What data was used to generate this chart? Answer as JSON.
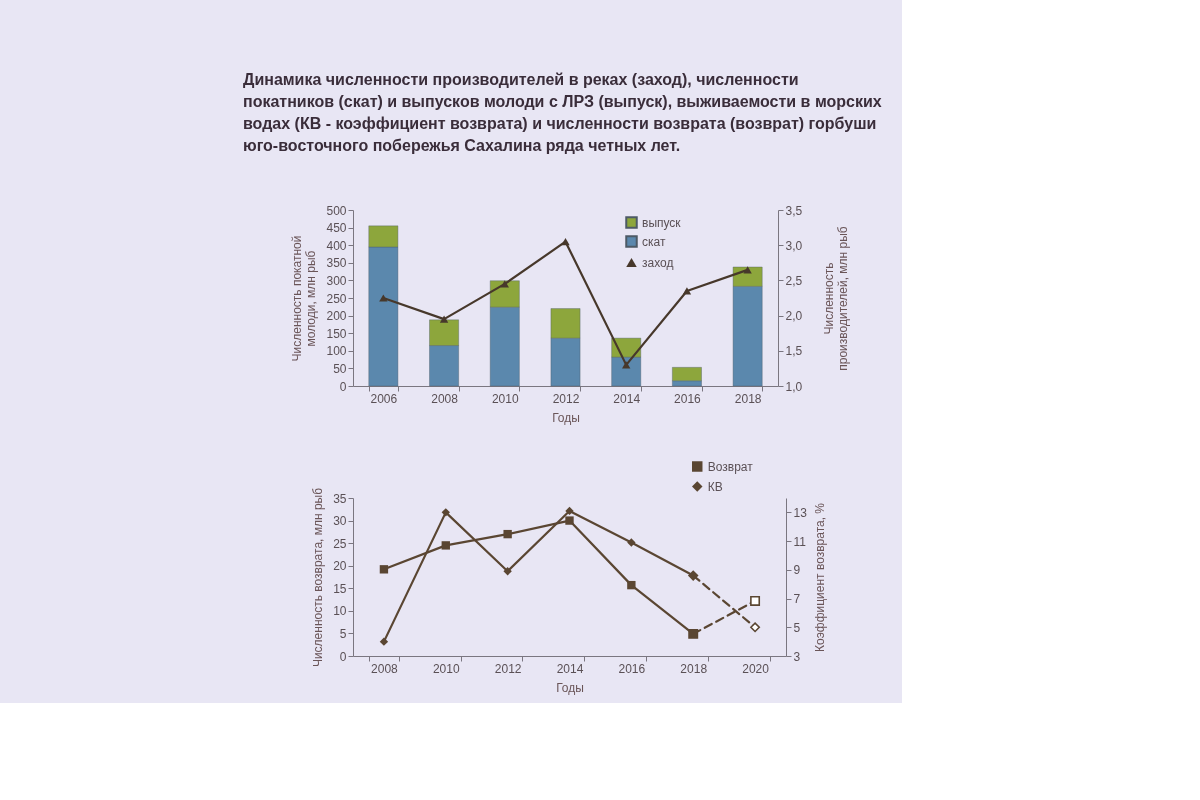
{
  "chart_data": [
    {
      "type": "bar",
      "title": "Динамика численности производителей в реках (заход), численности покатников (скат) и выпусков молоди с ЛРЗ (выпуск), выживаемости в морских водах (КВ - коэффициент возврата) и численности возврата (возврат) горбуши юго-восточного побережья Сахалина ряда четных лет.",
      "xlabel": "Годы",
      "ylabel": "Численность покатной молоди, млн рыб",
      "y2label": "Численность производителей, млн рыб",
      "categories": [
        "2006",
        "2008",
        "2010",
        "2012",
        "2014",
        "2016",
        "2018"
      ],
      "stacked": true,
      "series": [
        {
          "name": "скат",
          "color": "#5b88ad",
          "values": [
            395,
            115,
            224,
            136,
            82,
            15,
            283
          ]
        },
        {
          "name": "выпуск",
          "color": "#8da63c",
          "values": [
            60,
            73,
            75,
            84,
            54,
            38,
            55
          ]
        },
        {
          "name": "заход",
          "type": "line",
          "axis": "y2",
          "color": "#47382b",
          "marker": "triangle",
          "line_style": "solid",
          "values": [
            2.25,
            1.95,
            2.45,
            3.05,
            1.3,
            2.35,
            2.65
          ]
        }
      ],
      "ylim": [
        0,
        500
      ],
      "yticks": [
        0,
        50,
        100,
        150,
        200,
        250,
        300,
        350,
        400,
        450,
        500
      ],
      "y2lim": [
        1,
        3.5
      ],
      "y2ticks": [
        {
          "value": 1,
          "label": "1,0"
        },
        {
          "value": 1.5,
          "label": "1,5"
        },
        {
          "value": 2,
          "label": "2,0"
        },
        {
          "value": 2.5,
          "label": "2,5"
        },
        {
          "value": 3,
          "label": "3,0"
        },
        {
          "value": 3.5,
          "label": "3,5"
        }
      ],
      "legend": "top right"
    },
    {
      "type": "line",
      "xlabel": "Годы",
      "ylabel": "Численность возврата, млн рыб",
      "y2label": "Коэффициент возврата, %",
      "categories": [
        "2008",
        "2010",
        "2012",
        "2014",
        "2016",
        "2018",
        "2020"
      ],
      "series": [
        {
          "color": "#5a4632",
          "marker": "square",
          "line_style": "dashed",
          "values": [
            null,
            null,
            null,
            null,
            null,
            4.9,
            12.2
          ]
        },
        {
          "axis": "y2",
          "color": "#5a4632",
          "marker": "diamond",
          "line_style": "dashed",
          "values": [
            null,
            null,
            null,
            null,
            null,
            8.6,
            5.0
          ]
        },
        {
          "name": "Возврат",
          "color": "#5a4632",
          "marker": "square",
          "line_style": "solid",
          "values": [
            19.2,
            24.5,
            27,
            30,
            15.7,
            4.9,
            null
          ]
        },
        {
          "name": "КВ",
          "axis": "y2",
          "color": "#5a4632",
          "marker": "diamond",
          "line_style": "solid",
          "values": [
            4.0,
            13.0,
            8.9,
            13.1,
            10.9,
            8.6,
            null
          ]
        }
      ],
      "ylim": [
        0,
        35
      ],
      "yticks": [
        0,
        5,
        10,
        15,
        20,
        25,
        30,
        35
      ],
      "y2lim": [
        3,
        14
      ],
      "y2ticks": [
        3,
        5,
        7,
        9,
        11,
        13
      ],
      "legend": "top right"
    }
  ]
}
